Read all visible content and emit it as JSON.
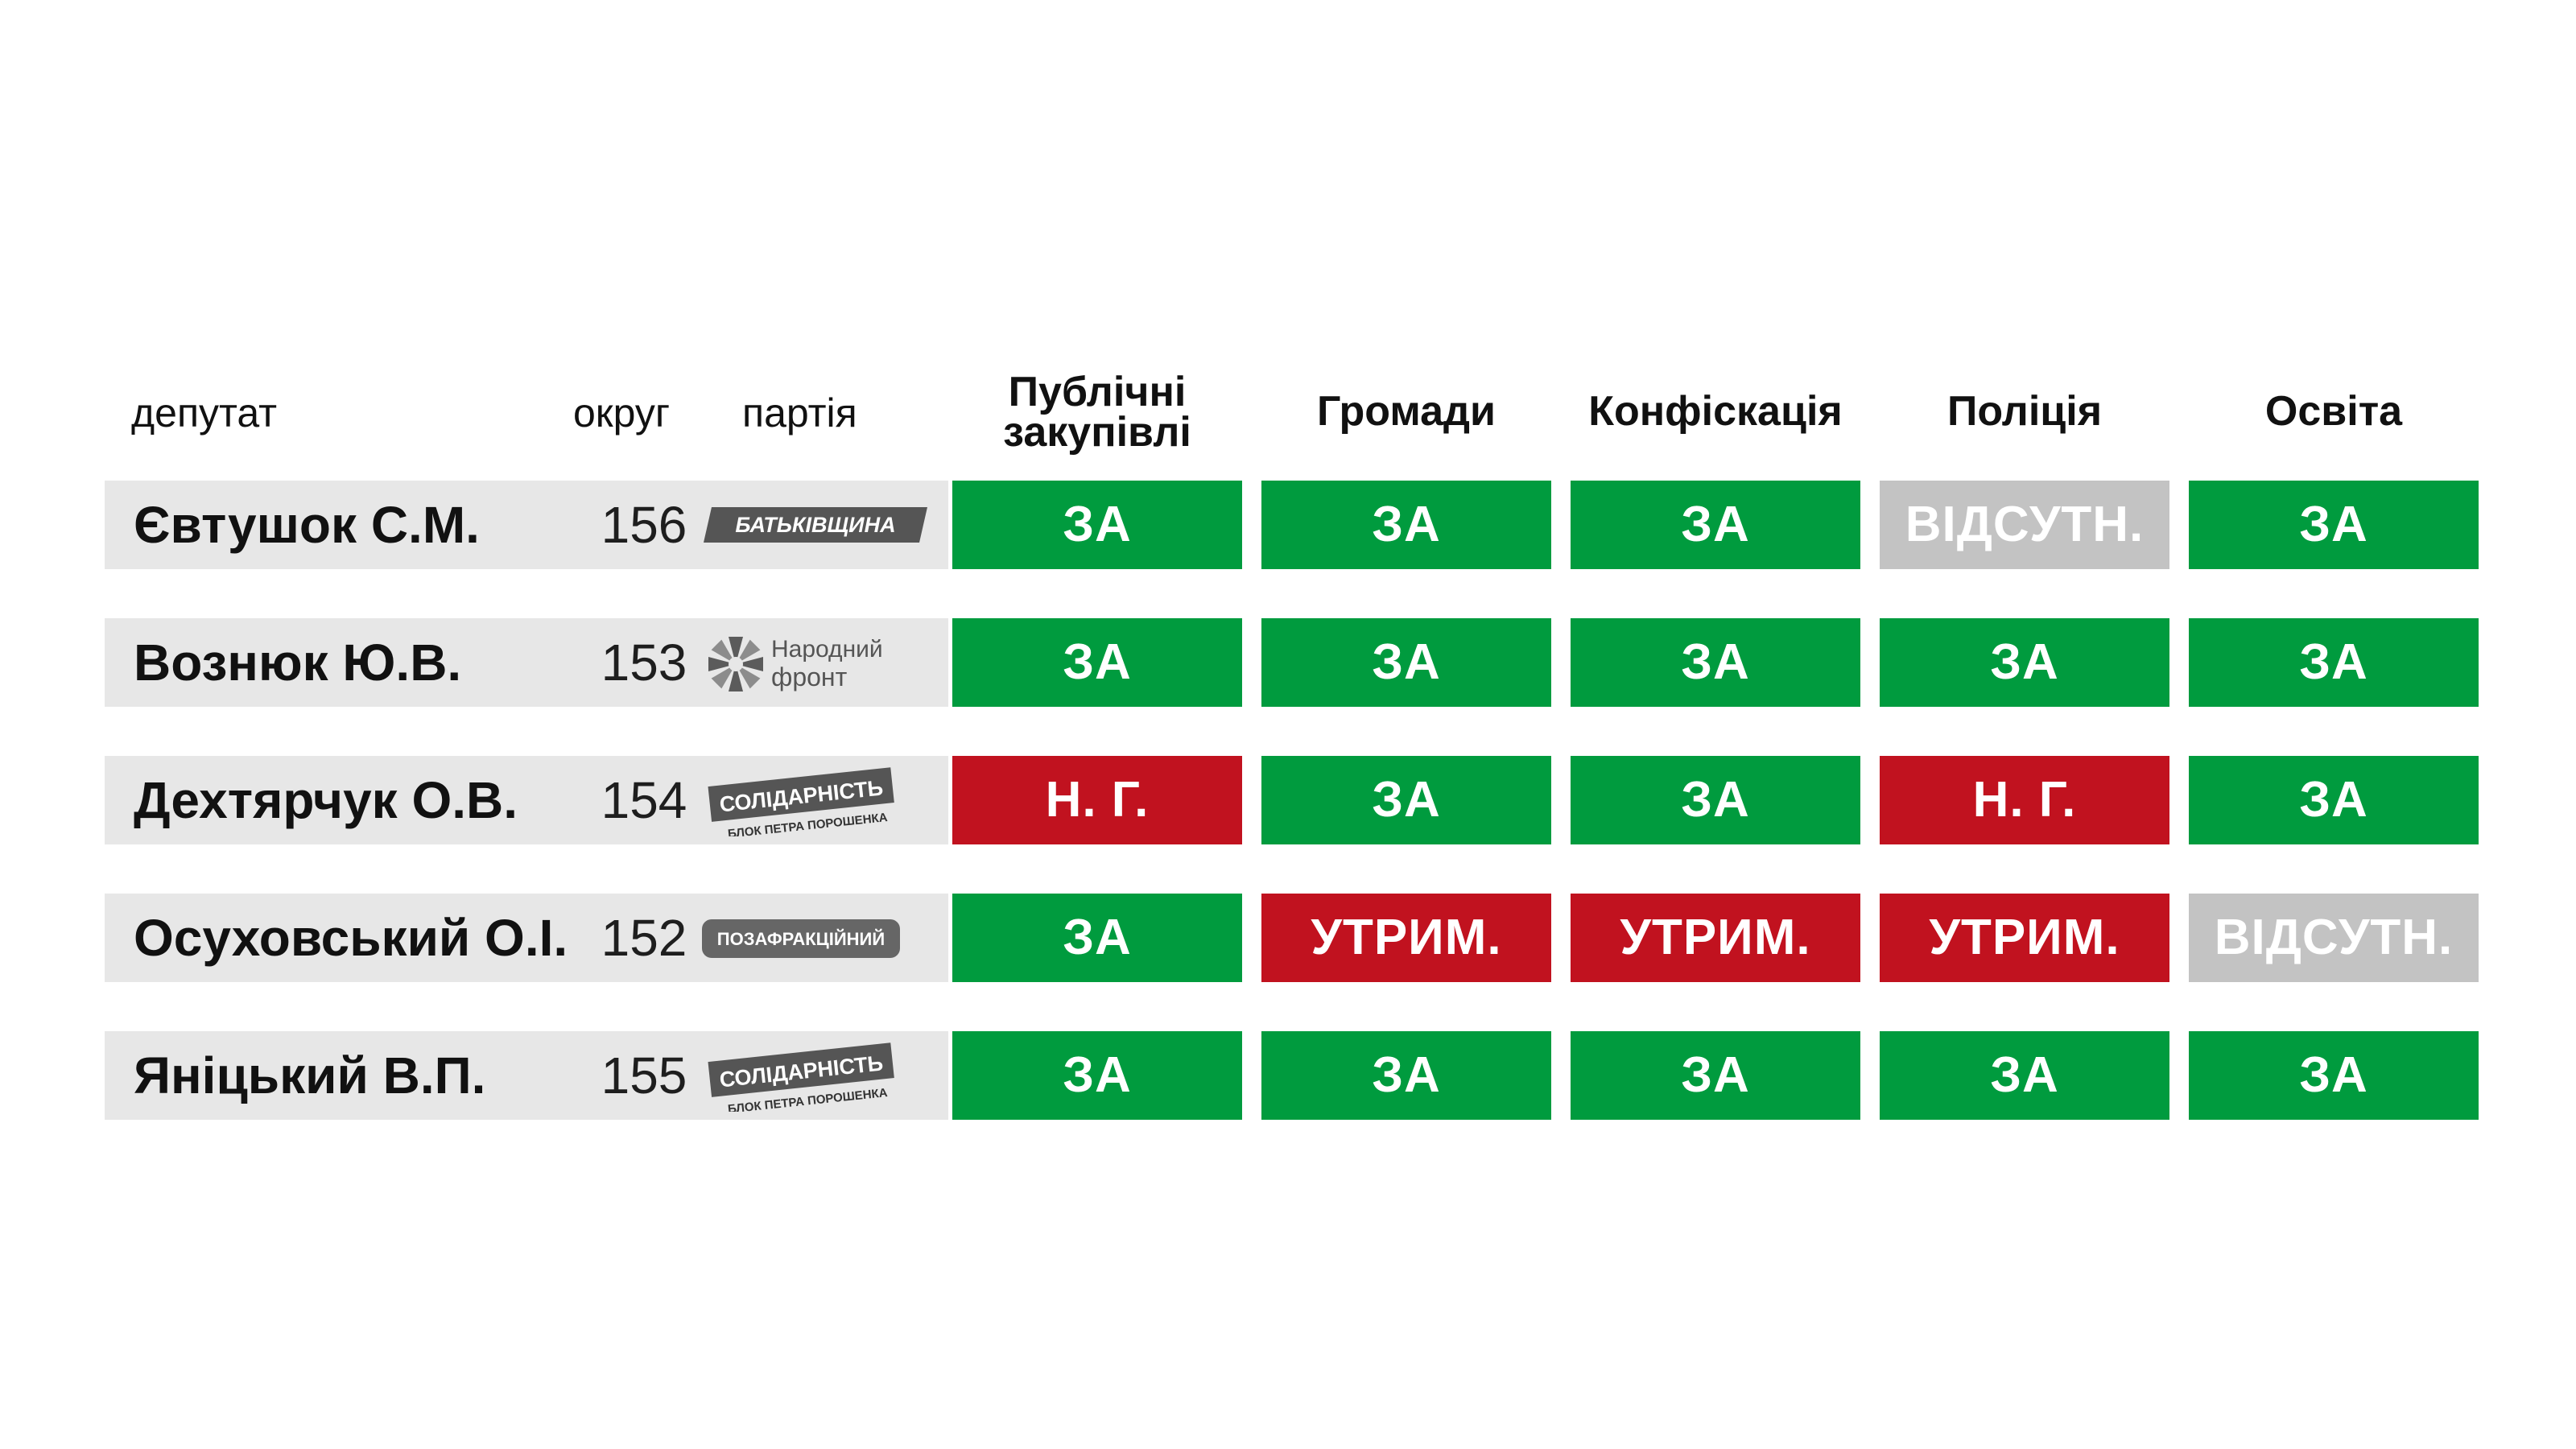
{
  "headers": {
    "deputy": "депутат",
    "okrug": "округ",
    "party": "партія"
  },
  "party_logos": {
    "batkivshchyna": {
      "text": "БАТЬКІВЩИНА"
    },
    "narodnyi_front": {
      "line1": "Народний",
      "line2": "фронт"
    },
    "solidarnist": {
      "line1": "СОЛІДАРНІСТЬ",
      "line2": "БЛОК ПЕТРА ПОРОШЕНКА"
    },
    "pozafraktsiinyi": {
      "text": "ПОЗАФРАКЦІЙНИЙ"
    }
  },
  "colors": {
    "ZA": "#009b3e",
    "N_G": "#c1121f",
    "UTRYM": "#c1121f",
    "VIDSUTN": "#c3c3c3",
    "row_bg": "#e7e7e7"
  },
  "chart_data": {
    "type": "table",
    "columns": [
      "Публічні закупівлі",
      "Громади",
      "Конфіскація",
      "Поліція",
      "Освіта"
    ],
    "column_lines": [
      [
        "Публічні",
        "закупівлі"
      ],
      [
        "Громади"
      ],
      [
        "Конфіскація"
      ],
      [
        "Поліція"
      ],
      [
        "Освіта"
      ]
    ],
    "rows": [
      {
        "deputy": "Євтушок С.М.",
        "okrug": "156",
        "party": "batkivshchyna",
        "votes": [
          "ЗА",
          "ЗА",
          "ЗА",
          "ВІДСУТН.",
          "ЗА"
        ]
      },
      {
        "deputy": "Вознюк Ю.В.",
        "okrug": "153",
        "party": "narodnyi_front",
        "votes": [
          "ЗА",
          "ЗА",
          "ЗА",
          "ЗА",
          "ЗА"
        ]
      },
      {
        "deputy": "Дехтярчук О.В.",
        "okrug": "154",
        "party": "solidarnist",
        "votes": [
          "Н. Г.",
          "ЗА",
          "ЗА",
          "Н. Г.",
          "ЗА"
        ]
      },
      {
        "deputy": "Осуховський О.І.",
        "okrug": "152",
        "party": "pozafraktsiinyi",
        "votes": [
          "ЗА",
          "УТРИМ.",
          "УТРИМ.",
          "УТРИМ.",
          "ВІДСУТН."
        ]
      },
      {
        "deputy": "Яніцький В.П.",
        "okrug": "155",
        "party": "solidarnist",
        "votes": [
          "ЗА",
          "ЗА",
          "ЗА",
          "ЗА",
          "ЗА"
        ]
      }
    ]
  }
}
